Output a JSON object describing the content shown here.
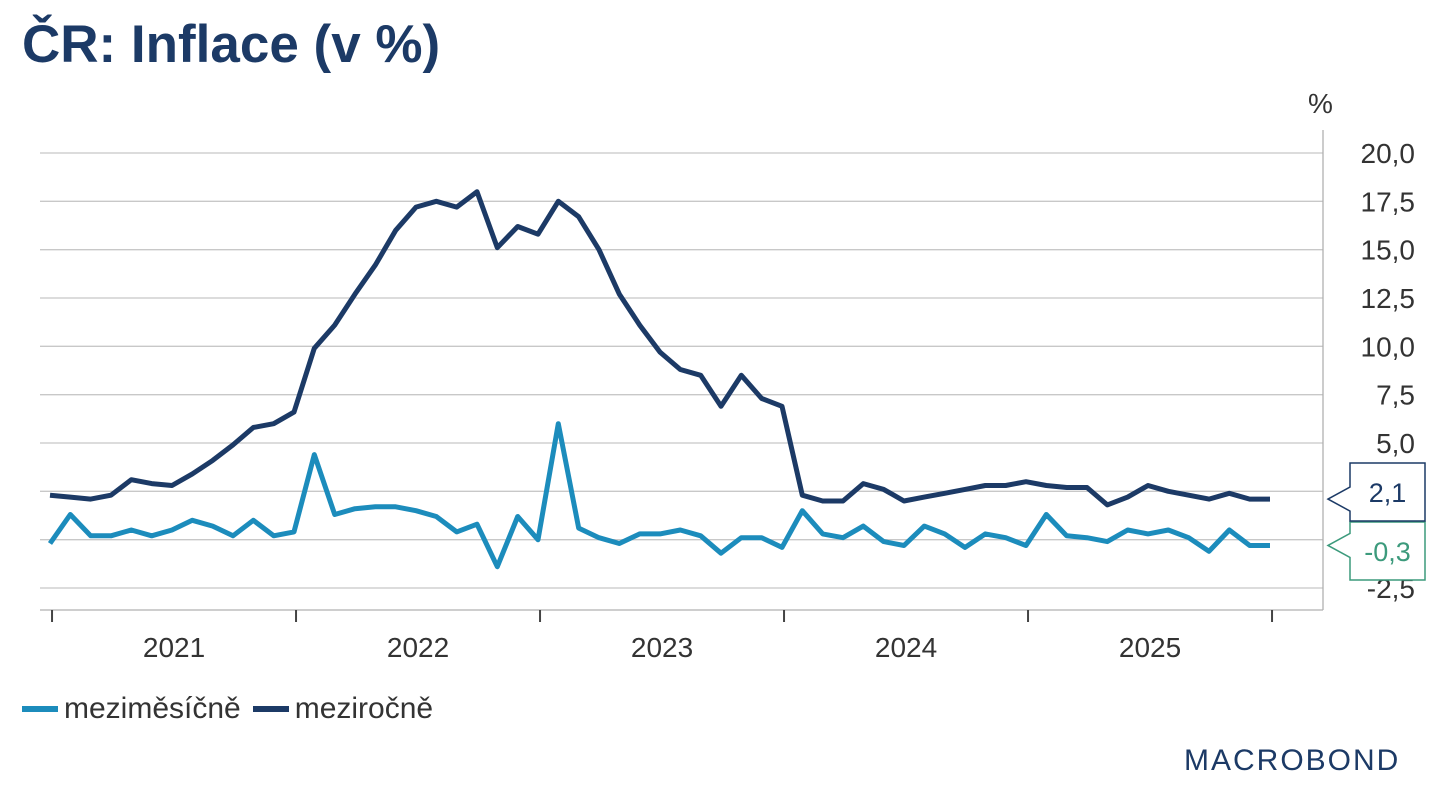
{
  "title": "ČR: Inflace (v %)",
  "unit_label": "%",
  "logo_text": "MACROBOND",
  "legend": [
    {
      "label": "meziměsíčně",
      "color": "#1c8cbc"
    },
    {
      "label": "meziročně",
      "color": "#1c3a66"
    }
  ],
  "chart_data": {
    "type": "line",
    "ylim": [
      -3.5,
      20.5
    ],
    "yticks": [
      -2.5,
      0,
      2.5,
      5,
      7.5,
      10,
      12.5,
      15,
      17.5,
      20
    ],
    "ytick_labels": [
      "-2,5",
      "",
      "",
      "5,0",
      "7,5",
      "10,0",
      "12,5",
      "15,0",
      "17,5",
      "20,0"
    ],
    "x_labels": [
      "2021",
      "2022",
      "2023",
      "2024",
      "2025"
    ],
    "x_start": "2020-12",
    "grid": true,
    "series": [
      {
        "name": "meziměsíčně",
        "color": "#1c8cbc",
        "end_label": "-0,3",
        "end_label_color": "#3c9a7c",
        "values": [
          -0.2,
          1.3,
          0.2,
          0.2,
          0.5,
          0.2,
          0.5,
          1.0,
          0.7,
          0.2,
          1.0,
          0.2,
          0.4,
          4.4,
          1.3,
          1.6,
          1.7,
          1.7,
          1.5,
          1.2,
          0.4,
          0.8,
          -1.4,
          1.2,
          0.0,
          6.0,
          0.6,
          0.1,
          -0.2,
          0.3,
          0.3,
          0.5,
          0.2,
          -0.7,
          0.1,
          0.1,
          -0.4,
          1.5,
          0.3,
          0.1,
          0.7,
          -0.1,
          -0.3,
          0.7,
          0.3,
          -0.4,
          0.3,
          0.1,
          -0.3,
          1.3,
          0.2,
          0.1,
          -0.1,
          0.5,
          0.3,
          0.5,
          0.1,
          -0.6,
          0.5,
          -0.3,
          -0.3
        ]
      },
      {
        "name": "meziročně",
        "color": "#1c3a66",
        "end_label": "2,1",
        "end_label_color": "#1c3a66",
        "values": [
          2.3,
          2.2,
          2.1,
          2.3,
          3.1,
          2.9,
          2.8,
          3.4,
          4.1,
          4.9,
          5.8,
          6.0,
          6.6,
          9.9,
          11.1,
          12.7,
          14.2,
          16.0,
          17.2,
          17.5,
          17.2,
          18.0,
          15.1,
          16.2,
          15.8,
          17.5,
          16.7,
          15.0,
          12.7,
          11.1,
          9.7,
          8.8,
          8.5,
          6.9,
          8.5,
          7.3,
          6.9,
          2.3,
          2.0,
          2.0,
          2.9,
          2.6,
          2.0,
          2.2,
          2.4,
          2.6,
          2.8,
          2.8,
          3.0,
          2.8,
          2.7,
          2.7,
          1.8,
          2.2,
          2.8,
          2.5,
          2.3,
          2.1,
          2.4,
          2.1,
          2.1
        ]
      }
    ]
  }
}
